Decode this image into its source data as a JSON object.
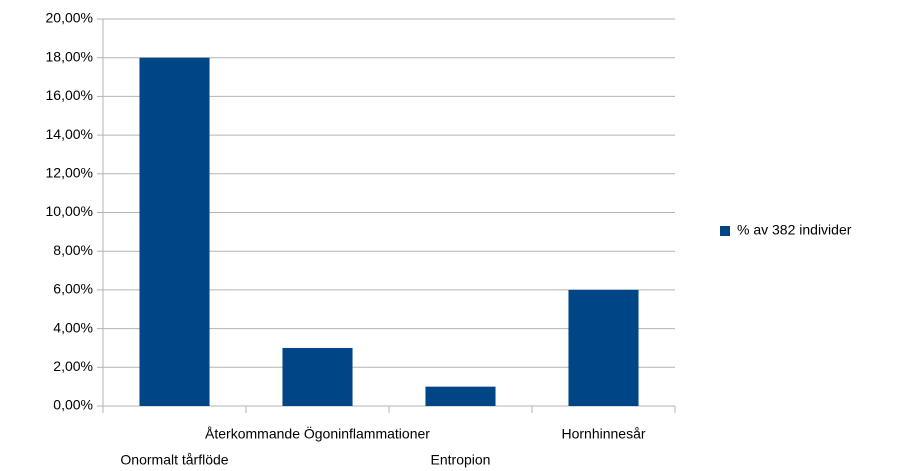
{
  "chart_data": {
    "type": "bar",
    "categories": [
      "Onormalt tårflöde",
      "Återkommande Ögoninflammationer",
      "Entropion",
      "Hornhinnesår"
    ],
    "series": [
      {
        "name": "% av 382 individer",
        "color": "#004586",
        "values": [
          18,
          3,
          1,
          6
        ]
      }
    ],
    "ylim": [
      0,
      20
    ],
    "yticks": [
      {
        "value": 0,
        "label": "0,00%"
      },
      {
        "value": 2,
        "label": "2,00%"
      },
      {
        "value": 4,
        "label": "4,00%"
      },
      {
        "value": 6,
        "label": "6,00%"
      },
      {
        "value": 8,
        "label": "8,00%"
      },
      {
        "value": 10,
        "label": "10,00%"
      },
      {
        "value": 12,
        "label": "12,00%"
      },
      {
        "value": 14,
        "label": "14,00%"
      },
      {
        "value": 16,
        "label": "16,00%"
      },
      {
        "value": 18,
        "label": "18,00%"
      },
      {
        "value": 20,
        "label": "20,00%"
      }
    ],
    "grid": true,
    "legend": "right"
  }
}
